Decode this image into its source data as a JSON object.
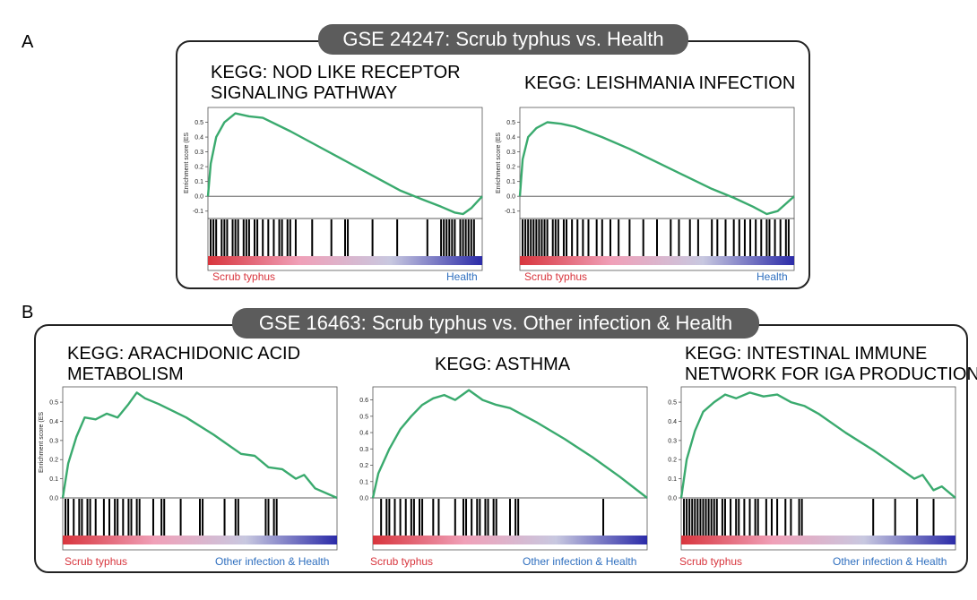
{
  "panels": [
    {
      "letter": "A",
      "banner": "GSE 24247: Scrub typhus vs. Health"
    },
    {
      "letter": "B",
      "banner": "GSE 16463: Scrub typhus vs. Other infection & Health"
    }
  ],
  "line_color": "#3aaa6e",
  "gradient_colors": [
    "#d8353d",
    "#f0a0b8",
    "#c8c8e0",
    "#2b2ba8"
  ],
  "chart_data": [
    {
      "type": "line",
      "title_lines": [
        "KEGG: NOD LIKE RECEPTOR",
        "SIGNALING PATHWAY"
      ],
      "ylabel": "Enrichment score (ES",
      "ylim": [
        -0.15,
        0.6
      ],
      "yticks": [
        "0.5",
        "0.4",
        "0.3",
        "0.2",
        "0.1",
        "0.0",
        "-0.1"
      ],
      "left_label": "Scrub typhus",
      "right_label": "Health",
      "x": [
        0,
        0.01,
        0.03,
        0.06,
        0.1,
        0.15,
        0.2,
        0.3,
        0.4,
        0.5,
        0.6,
        0.7,
        0.78,
        0.85,
        0.9,
        0.93,
        0.96,
        1.0
      ],
      "es": [
        0.0,
        0.22,
        0.4,
        0.5,
        0.56,
        0.54,
        0.53,
        0.44,
        0.34,
        0.24,
        0.14,
        0.04,
        -0.02,
        -0.07,
        -0.11,
        -0.12,
        -0.08,
        0.0
      ],
      "hits": [
        0.01,
        0.02,
        0.03,
        0.05,
        0.06,
        0.07,
        0.09,
        0.1,
        0.11,
        0.13,
        0.14,
        0.15,
        0.17,
        0.18,
        0.2,
        0.22,
        0.24,
        0.26,
        0.27,
        0.29,
        0.3,
        0.32,
        0.38,
        0.45,
        0.5,
        0.51,
        0.6,
        0.69,
        0.8,
        0.85,
        0.86,
        0.87,
        0.88,
        0.89,
        0.9,
        0.92,
        0.93,
        0.94,
        0.95,
        0.96,
        0.97
      ]
    },
    {
      "type": "line",
      "title_lines": [
        "KEGG: LEISHMANIA INFECTION"
      ],
      "ylabel": "Enrichment score (ES",
      "ylim": [
        -0.15,
        0.6
      ],
      "yticks": [
        "0.5",
        "0.4",
        "0.3",
        "0.2",
        "0.1",
        "0.0",
        "-0.1"
      ],
      "left_label": "Scrub typhus",
      "right_label": "Health",
      "x": [
        0,
        0.01,
        0.03,
        0.06,
        0.1,
        0.15,
        0.2,
        0.3,
        0.4,
        0.5,
        0.6,
        0.7,
        0.78,
        0.85,
        0.9,
        0.94,
        0.97,
        1.0
      ],
      "es": [
        0.0,
        0.25,
        0.4,
        0.46,
        0.5,
        0.49,
        0.47,
        0.4,
        0.32,
        0.23,
        0.14,
        0.05,
        -0.01,
        -0.07,
        -0.12,
        -0.1,
        -0.05,
        0.0
      ],
      "hits": [
        0.01,
        0.02,
        0.03,
        0.04,
        0.05,
        0.06,
        0.07,
        0.08,
        0.09,
        0.1,
        0.12,
        0.13,
        0.14,
        0.16,
        0.17,
        0.19,
        0.21,
        0.23,
        0.25,
        0.28,
        0.3,
        0.33,
        0.36,
        0.4,
        0.45,
        0.5,
        0.55,
        0.58,
        0.62,
        0.65,
        0.7,
        0.72,
        0.75,
        0.78,
        0.8,
        0.82,
        0.84,
        0.86,
        0.88,
        0.9,
        0.91,
        0.93,
        0.95,
        0.97,
        0.98
      ]
    },
    {
      "type": "line",
      "title_lines": [
        "KEGG: ARACHIDONIC ACID",
        "METABOLISM"
      ],
      "ylabel": "Enrichment score (ES",
      "ylim": [
        0,
        0.58
      ],
      "yticks": [
        "0.5",
        "0.4",
        "0.3",
        "0.2",
        "0.1",
        "0.0"
      ],
      "left_label": "Scrub typhus",
      "right_label": "Other infection & Health",
      "x": [
        0,
        0.02,
        0.05,
        0.08,
        0.12,
        0.16,
        0.2,
        0.24,
        0.27,
        0.3,
        0.35,
        0.45,
        0.55,
        0.6,
        0.65,
        0.7,
        0.75,
        0.8,
        0.85,
        0.88,
        0.92,
        1.0
      ],
      "es": [
        0.0,
        0.18,
        0.32,
        0.42,
        0.41,
        0.44,
        0.42,
        0.49,
        0.55,
        0.52,
        0.49,
        0.42,
        0.33,
        0.28,
        0.23,
        0.22,
        0.16,
        0.15,
        0.1,
        0.12,
        0.05,
        0.0
      ],
      "hits": [
        0.01,
        0.02,
        0.04,
        0.06,
        0.07,
        0.09,
        0.1,
        0.12,
        0.15,
        0.17,
        0.19,
        0.2,
        0.22,
        0.24,
        0.25,
        0.27,
        0.28,
        0.33,
        0.36,
        0.37,
        0.43,
        0.5,
        0.51,
        0.59,
        0.63,
        0.64,
        0.74,
        0.75,
        0.77,
        0.78
      ]
    },
    {
      "type": "line",
      "title_lines": [
        "KEGG: ASTHMA"
      ],
      "ylabel": "",
      "ylim": [
        0,
        0.68
      ],
      "yticks": [
        "0.6",
        "0.5",
        "0.4",
        "0.3",
        "0.2",
        "0.1",
        "0.0"
      ],
      "left_label": "Scrub typhus",
      "right_label": "Other infection & Health",
      "x": [
        0,
        0.02,
        0.06,
        0.1,
        0.14,
        0.18,
        0.22,
        0.26,
        0.3,
        0.35,
        0.4,
        0.45,
        0.5,
        0.6,
        0.7,
        0.8,
        0.9,
        1.0
      ],
      "es": [
        0.0,
        0.15,
        0.3,
        0.42,
        0.5,
        0.57,
        0.61,
        0.63,
        0.6,
        0.66,
        0.6,
        0.57,
        0.55,
        0.46,
        0.36,
        0.25,
        0.13,
        0.0
      ],
      "hits": [
        0.03,
        0.05,
        0.06,
        0.08,
        0.1,
        0.12,
        0.14,
        0.15,
        0.17,
        0.18,
        0.22,
        0.24,
        0.3,
        0.33,
        0.34,
        0.36,
        0.38,
        0.39,
        0.41,
        0.42,
        0.44,
        0.45,
        0.5,
        0.52,
        0.53,
        0.84
      ]
    },
    {
      "type": "line",
      "title_lines": [
        "KEGG: INTESTINAL IMMUNE",
        "NETWORK FOR IGA PRODUCTION"
      ],
      "ylabel": "",
      "ylim": [
        0,
        0.58
      ],
      "yticks": [
        "0.5",
        "0.4",
        "0.3",
        "0.2",
        "0.1",
        "0.0"
      ],
      "left_label": "Scrub typhus",
      "right_label": "Other infection & Health",
      "x": [
        0,
        0.02,
        0.05,
        0.08,
        0.12,
        0.16,
        0.2,
        0.25,
        0.3,
        0.35,
        0.4,
        0.45,
        0.5,
        0.6,
        0.7,
        0.75,
        0.8,
        0.85,
        0.88,
        0.92,
        0.95,
        1.0
      ],
      "es": [
        0.0,
        0.2,
        0.35,
        0.45,
        0.5,
        0.54,
        0.52,
        0.55,
        0.53,
        0.54,
        0.5,
        0.48,
        0.44,
        0.34,
        0.25,
        0.2,
        0.15,
        0.1,
        0.12,
        0.04,
        0.06,
        0.0
      ],
      "hits": [
        0.01,
        0.02,
        0.03,
        0.04,
        0.05,
        0.06,
        0.07,
        0.08,
        0.09,
        0.1,
        0.11,
        0.12,
        0.13,
        0.15,
        0.16,
        0.18,
        0.2,
        0.21,
        0.23,
        0.25,
        0.27,
        0.28,
        0.31,
        0.33,
        0.35,
        0.38,
        0.4,
        0.43,
        0.44,
        0.7,
        0.78,
        0.86,
        0.92
      ]
    }
  ]
}
